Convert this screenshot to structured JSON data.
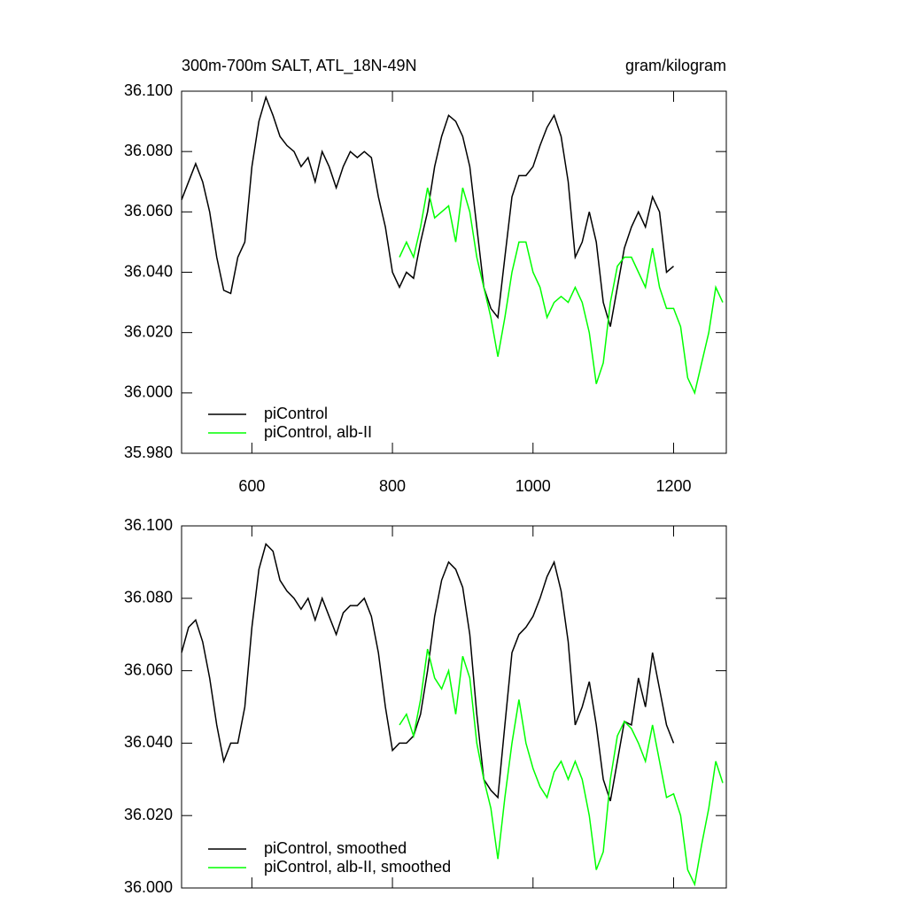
{
  "chart_data": [
    {
      "type": "line",
      "title": "300m-700m SALT, ATL_18N-49N",
      "units": "gram/kilogram",
      "x": [
        500,
        510,
        520,
        530,
        540,
        550,
        560,
        570,
        580,
        590,
        600,
        610,
        620,
        630,
        640,
        650,
        660,
        670,
        680,
        690,
        700,
        710,
        720,
        730,
        740,
        750,
        760,
        770,
        780,
        790,
        800,
        810,
        820,
        830,
        840,
        850,
        860,
        870,
        880,
        890,
        900,
        910,
        920,
        930,
        940,
        950,
        960,
        970,
        980,
        990,
        1000,
        1010,
        1020,
        1030,
        1040,
        1050,
        1060,
        1070,
        1080,
        1090,
        1100,
        1110,
        1120,
        1130,
        1140,
        1150,
        1160,
        1170,
        1180,
        1190,
        1200,
        1210,
        1220,
        1230,
        1240,
        1250,
        1260,
        1270
      ],
      "series": [
        {
          "name": "piControl",
          "color": "#000000",
          "values": [
            36.064,
            36.07,
            36.076,
            36.07,
            36.06,
            36.045,
            36.034,
            36.033,
            36.045,
            36.05,
            36.075,
            36.09,
            36.098,
            36.092,
            36.085,
            36.082,
            36.08,
            36.075,
            36.078,
            36.07,
            36.08,
            36.075,
            36.068,
            36.075,
            36.08,
            36.078,
            36.08,
            36.078,
            36.065,
            36.055,
            36.04,
            36.035,
            36.04,
            36.038,
            36.05,
            36.06,
            36.075,
            36.085,
            36.092,
            36.09,
            36.085,
            36.075,
            36.055,
            36.035,
            36.028,
            36.025,
            36.045,
            36.065,
            36.072,
            36.072,
            36.075,
            36.082,
            36.088,
            36.092,
            36.085,
            36.07,
            36.045,
            36.05,
            36.06,
            36.05,
            36.03,
            36.022,
            36.035,
            36.048,
            36.055,
            36.06,
            36.055,
            36.065,
            36.06,
            36.04,
            36.042,
            null,
            null,
            null,
            null,
            null,
            null,
            null
          ]
        },
        {
          "name": "piControl, alb-II",
          "color": "#00ff00",
          "values": [
            null,
            null,
            null,
            null,
            null,
            null,
            null,
            null,
            null,
            null,
            null,
            null,
            null,
            null,
            null,
            null,
            null,
            null,
            null,
            null,
            null,
            null,
            null,
            null,
            null,
            null,
            null,
            null,
            null,
            null,
            null,
            36.045,
            36.05,
            36.045,
            36.055,
            36.068,
            36.058,
            36.06,
            36.062,
            36.05,
            36.068,
            36.06,
            36.045,
            36.035,
            36.025,
            36.012,
            36.025,
            36.04,
            36.05,
            36.05,
            36.04,
            36.035,
            36.025,
            36.03,
            36.032,
            36.03,
            36.035,
            36.03,
            36.02,
            36.003,
            36.01,
            36.03,
            36.042,
            36.045,
            36.045,
            36.04,
            36.035,
            36.048,
            36.035,
            36.028,
            36.028,
            36.022,
            36.005,
            36.0,
            36.01,
            36.02,
            36.035,
            36.03
          ]
        }
      ],
      "xlim": [
        500,
        1275
      ],
      "xticks": [
        600,
        800,
        1000,
        1200
      ],
      "show_xtick_labels": true,
      "ylim": [
        35.98,
        36.1
      ],
      "yticks": [
        {
          "value": 35.98,
          "label": "35.980"
        },
        {
          "value": 36.0,
          "label": "36.000"
        },
        {
          "value": 36.02,
          "label": "36.020"
        },
        {
          "value": 36.04,
          "label": "36.040"
        },
        {
          "value": 36.06,
          "label": "36.060"
        },
        {
          "value": 36.08,
          "label": "36.080"
        },
        {
          "value": 36.1,
          "label": "36.100"
        }
      ],
      "legend": "lower left"
    },
    {
      "type": "line",
      "x": [
        500,
        510,
        520,
        530,
        540,
        550,
        560,
        570,
        580,
        590,
        600,
        610,
        620,
        630,
        640,
        650,
        660,
        670,
        680,
        690,
        700,
        710,
        720,
        730,
        740,
        750,
        760,
        770,
        780,
        790,
        800,
        810,
        820,
        830,
        840,
        850,
        860,
        870,
        880,
        890,
        900,
        910,
        920,
        930,
        940,
        950,
        960,
        970,
        980,
        990,
        1000,
        1010,
        1020,
        1030,
        1040,
        1050,
        1060,
        1070,
        1080,
        1090,
        1100,
        1110,
        1120,
        1130,
        1140,
        1150,
        1160,
        1170,
        1180,
        1190,
        1200,
        1210,
        1220,
        1230,
        1240,
        1250,
        1260,
        1270
      ],
      "series": [
        {
          "name": "piControl, smoothed",
          "color": "#000000",
          "values": [
            36.065,
            36.072,
            36.074,
            36.068,
            36.058,
            36.045,
            36.035,
            36.04,
            36.04,
            36.05,
            36.072,
            36.088,
            36.095,
            36.093,
            36.085,
            36.082,
            36.08,
            36.077,
            36.08,
            36.074,
            36.08,
            36.075,
            36.07,
            36.076,
            36.078,
            36.078,
            36.08,
            36.075,
            36.065,
            36.05,
            36.038,
            36.04,
            36.04,
            36.042,
            36.048,
            36.06,
            36.075,
            36.085,
            36.09,
            36.088,
            36.083,
            36.07,
            36.048,
            36.03,
            36.027,
            36.025,
            36.045,
            36.065,
            36.07,
            36.072,
            36.075,
            36.08,
            36.086,
            36.09,
            36.082,
            36.068,
            36.045,
            36.05,
            36.057,
            36.045,
            36.03,
            36.024,
            36.035,
            36.046,
            36.045,
            36.058,
            36.05,
            36.065,
            36.055,
            36.045,
            36.04,
            null,
            null,
            null,
            null,
            null,
            null,
            null
          ]
        },
        {
          "name": "piControl, alb-II, smoothed",
          "color": "#00ff00",
          "values": [
            null,
            null,
            null,
            null,
            null,
            null,
            null,
            null,
            null,
            null,
            null,
            null,
            null,
            null,
            null,
            null,
            null,
            null,
            null,
            null,
            null,
            null,
            null,
            null,
            null,
            null,
            null,
            null,
            null,
            null,
            null,
            36.045,
            36.048,
            36.042,
            36.052,
            36.066,
            36.058,
            36.055,
            36.06,
            36.048,
            36.064,
            36.058,
            36.04,
            36.03,
            36.022,
            36.008,
            36.025,
            36.04,
            36.052,
            36.04,
            36.033,
            36.028,
            36.025,
            36.032,
            36.035,
            36.03,
            36.035,
            36.03,
            36.02,
            36.005,
            36.01,
            36.03,
            36.042,
            36.046,
            36.044,
            36.04,
            36.035,
            36.045,
            36.035,
            36.025,
            36.026,
            36.02,
            36.005,
            36.001,
            36.012,
            36.022,
            36.035,
            36.029
          ]
        }
      ],
      "xlim": [
        500,
        1275
      ],
      "xticks": [
        600,
        800,
        1000,
        1200
      ],
      "show_xtick_labels": false,
      "ylim": [
        36.0,
        36.1
      ],
      "yticks": [
        {
          "value": 36.0,
          "label": "36.000"
        },
        {
          "value": 36.02,
          "label": "36.020"
        },
        {
          "value": 36.04,
          "label": "36.040"
        },
        {
          "value": 36.06,
          "label": "36.060"
        },
        {
          "value": 36.08,
          "label": "36.080"
        },
        {
          "value": 36.1,
          "label": "36.100"
        }
      ],
      "legend": "lower left"
    }
  ]
}
